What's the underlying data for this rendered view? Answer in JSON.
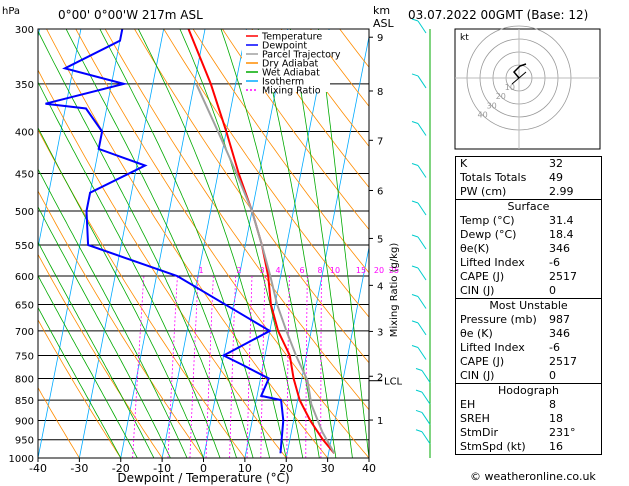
{
  "header": {
    "location": "0°00' 0°00'W 217m ASL",
    "datetime": "03.07.2022 00GMT (Base: 12)",
    "p_unit": "hPa",
    "km_label": "km",
    "asl_label": "ASL"
  },
  "legend": [
    "Temperature",
    "Dewpoint",
    "Parcel Trajectory",
    "Dry Adiabat",
    "Wet Adiabat",
    "Isotherm",
    "Mixing Ratio"
  ],
  "colors": {
    "temperature": "#ff0000",
    "dewpoint": "#0000ff",
    "parcel": "#a0a0a0",
    "dry_adiabat": "#ff8c00",
    "wet_adiabat": "#00aa00",
    "isotherm": "#00aaff",
    "mixing_ratio": "#ff00ff"
  },
  "chart_data": {
    "type": "line",
    "xlabel": "Dewpoint / Temperature (°C)",
    "ylabel": "Mixing Ratio (g/kg)",
    "x_ticks": [
      "-40",
      "-30",
      "-20",
      "-10",
      "0",
      "10",
      "20",
      "30",
      "40"
    ],
    "p_ticks": [
      "300",
      "350",
      "400",
      "450",
      "500",
      "550",
      "600",
      "650",
      "700",
      "750",
      "800",
      "850",
      "900",
      "950",
      "1000"
    ],
    "km_ticks": [
      {
        "label": "9",
        "p": 307
      },
      {
        "label": "8",
        "p": 357
      },
      {
        "label": "7",
        "p": 410
      },
      {
        "label": "6",
        "p": 472
      },
      {
        "label": "5",
        "p": 540
      },
      {
        "label": "4",
        "p": 616
      },
      {
        "label": "3",
        "p": 701
      },
      {
        "label": "2",
        "p": 795
      },
      {
        "label": "1",
        "p": 899
      }
    ],
    "lcl": {
      "label": "LCL",
      "p": 805
    },
    "mixing_ratio_labels": [
      {
        "label": "1",
        "x": 23
      },
      {
        "label": "2",
        "x": 61
      },
      {
        "label": "3",
        "x": 84
      },
      {
        "label": "4",
        "x": 100
      },
      {
        "label": "6",
        "x": 124
      },
      {
        "label": "8",
        "x": 142
      },
      {
        "label": "10",
        "x": 157
      },
      {
        "label": "15",
        "x": 183
      },
      {
        "label": "20",
        "x": 201
      },
      {
        "label": "25",
        "x": 216
      }
    ],
    "series": [
      {
        "name": "Temperature",
        "points": [
          [
            31.4,
            987
          ],
          [
            28,
            950
          ],
          [
            24,
            900
          ],
          [
            20.5,
            850
          ],
          [
            18,
            800
          ],
          [
            16,
            750
          ],
          [
            12,
            700
          ],
          [
            9,
            650
          ],
          [
            7,
            600
          ],
          [
            4,
            550
          ],
          [
            0,
            500
          ],
          [
            -5,
            450
          ],
          [
            -10,
            400
          ],
          [
            -16,
            350
          ],
          [
            -24,
            300
          ]
        ]
      },
      {
        "name": "Dewpoint",
        "points": [
          [
            18.4,
            987
          ],
          [
            18,
            950
          ],
          [
            17.5,
            900
          ],
          [
            16,
            850
          ],
          [
            11,
            840
          ],
          [
            12,
            800
          ],
          [
            5,
            770
          ],
          [
            0,
            750
          ],
          [
            10,
            700
          ],
          [
            -15,
            600
          ],
          [
            -38,
            550
          ],
          [
            -40,
            500
          ],
          [
            -40,
            475
          ],
          [
            -28,
            440
          ],
          [
            -40,
            420
          ],
          [
            -40,
            400
          ],
          [
            -45,
            375
          ],
          [
            -55,
            370
          ],
          [
            -37,
            350
          ],
          [
            -52,
            335
          ],
          [
            -40,
            310
          ],
          [
            -40,
            300
          ]
        ]
      },
      {
        "name": "Parcel Trajectory",
        "points": [
          [
            31.4,
            987
          ],
          [
            27.5,
            930
          ],
          [
            23.5,
            860
          ],
          [
            21.5,
            805
          ],
          [
            17.5,
            750
          ],
          [
            14,
            700
          ],
          [
            10.5,
            650
          ],
          [
            7.5,
            600
          ],
          [
            4,
            550
          ],
          [
            0,
            500
          ],
          [
            -5.5,
            450
          ],
          [
            -12,
            400
          ],
          [
            -19.5,
            350
          ]
        ]
      }
    ],
    "x_range": [
      -40,
      40
    ],
    "p_range": [
      300,
      1000
    ],
    "skew": "-70 px per log-pressure unit"
  },
  "hodograph": {
    "label": "kt",
    "ring_labels": [
      "40",
      "30",
      "20",
      "10"
    ]
  },
  "indices": [
    {
      "label": "K",
      "value": "32"
    },
    {
      "label": "Totals Totals",
      "value": "49"
    },
    {
      "label": "PW (cm)",
      "value": "2.99"
    }
  ],
  "surface": {
    "title": "Surface",
    "rows": [
      {
        "label": "Temp (°C)",
        "value": "31.4"
      },
      {
        "label": "Dewp (°C)",
        "value": "18.4"
      },
      {
        "label": "θe(K)",
        "value": "346"
      },
      {
        "label": "Lifted Index",
        "value": "-6"
      },
      {
        "label": "CAPE (J)",
        "value": "2517"
      },
      {
        "label": "CIN (J)",
        "value": "0"
      }
    ]
  },
  "most_unstable": {
    "title": "Most Unstable",
    "rows": [
      {
        "label": "Pressure (mb)",
        "value": "987"
      },
      {
        "label": "θe (K)",
        "value": "346"
      },
      {
        "label": "Lifted Index",
        "value": "-6"
      },
      {
        "label": "CAPE (J)",
        "value": "2517"
      },
      {
        "label": "CIN (J)",
        "value": "0"
      }
    ]
  },
  "hodo_table": {
    "title": "Hodograph",
    "rows": [
      {
        "label": "EH",
        "value": "8"
      },
      {
        "label": "SREH",
        "value": "18"
      },
      {
        "label": "StmDir",
        "value": "231°"
      },
      {
        "label": "StmSpd (kt)",
        "value": "16"
      }
    ]
  },
  "copyright": "© weatheronline.co.uk"
}
